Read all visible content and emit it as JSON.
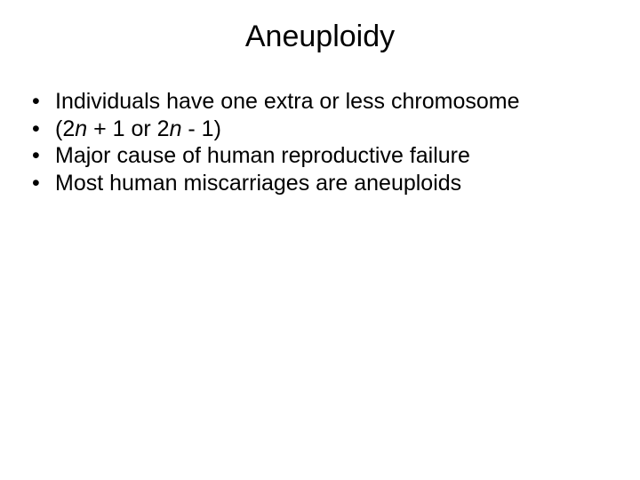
{
  "slide": {
    "background_color": "#ffffff",
    "text_color": "#000000",
    "font_family": "Arial",
    "title": {
      "text": "Aneuploidy",
      "fontsize_pt": 34,
      "align": "center",
      "weight": "normal"
    },
    "bullets": {
      "fontsize_pt": 25,
      "marker": "•",
      "items": [
        {
          "runs": [
            {
              "text": "Individuals have one extra or less chromosome",
              "italic": false
            }
          ]
        },
        {
          "runs": [
            {
              "text": "(2",
              "italic": false
            },
            {
              "text": "n",
              "italic": true
            },
            {
              "text": " + 1 or 2",
              "italic": false
            },
            {
              "text": "n",
              "italic": true
            },
            {
              "text": " - 1)",
              "italic": false
            }
          ]
        },
        {
          "runs": [
            {
              "text": "Major cause of human reproductive failure",
              "italic": false
            }
          ]
        },
        {
          "runs": [
            {
              "text": "Most human miscarriages are aneuploids",
              "italic": false
            }
          ]
        }
      ]
    }
  }
}
